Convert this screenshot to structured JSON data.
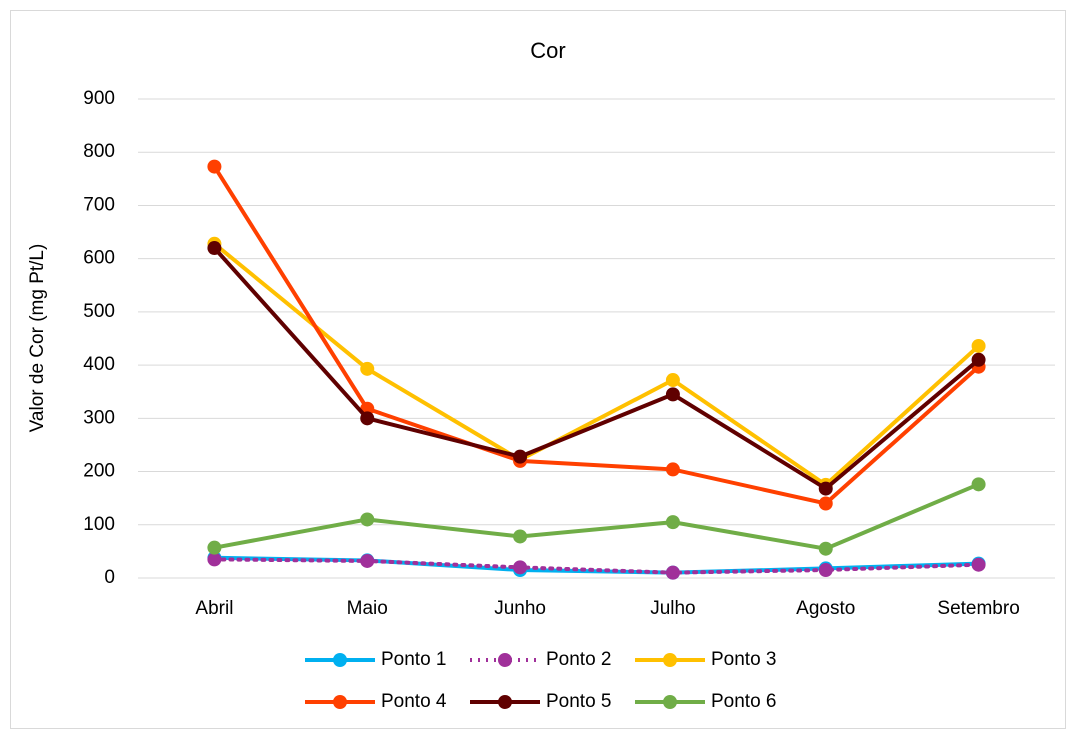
{
  "chart_data": {
    "type": "line",
    "title": "Cor",
    "y_label": "Valor de Cor (mg Pt/L)",
    "categories": [
      "Abril",
      "Maio",
      "Junho",
      "Julho",
      "Agosto",
      "Setembro"
    ],
    "series": [
      {
        "name": "Ponto 1",
        "color": "#00b0f0",
        "values": [
          38,
          33,
          15,
          10,
          18,
          27
        ]
      },
      {
        "name": "Ponto 2",
        "color": "#a0309a",
        "dash": "dotted",
        "values": [
          35,
          32,
          20,
          10,
          15,
          25
        ]
      },
      {
        "name": "Ponto 3",
        "color": "#ffc000",
        "values": [
          628,
          393,
          222,
          372,
          175,
          436
        ]
      },
      {
        "name": "Ponto 4",
        "color": "#ff4000",
        "values": [
          773,
          318,
          220,
          204,
          140,
          397
        ]
      },
      {
        "name": "Ponto 5",
        "color": "#600000",
        "values": [
          620,
          300,
          228,
          345,
          168,
          410
        ]
      },
      {
        "name": "Ponto 6",
        "color": "#70ad47",
        "values": [
          57,
          110,
          78,
          105,
          55,
          176
        ]
      }
    ],
    "ylim": [
      0,
      900
    ],
    "yticks": [
      0,
      100,
      200,
      300,
      400,
      500,
      600,
      700,
      800,
      900
    ],
    "grid": true,
    "legend": "bottom"
  }
}
